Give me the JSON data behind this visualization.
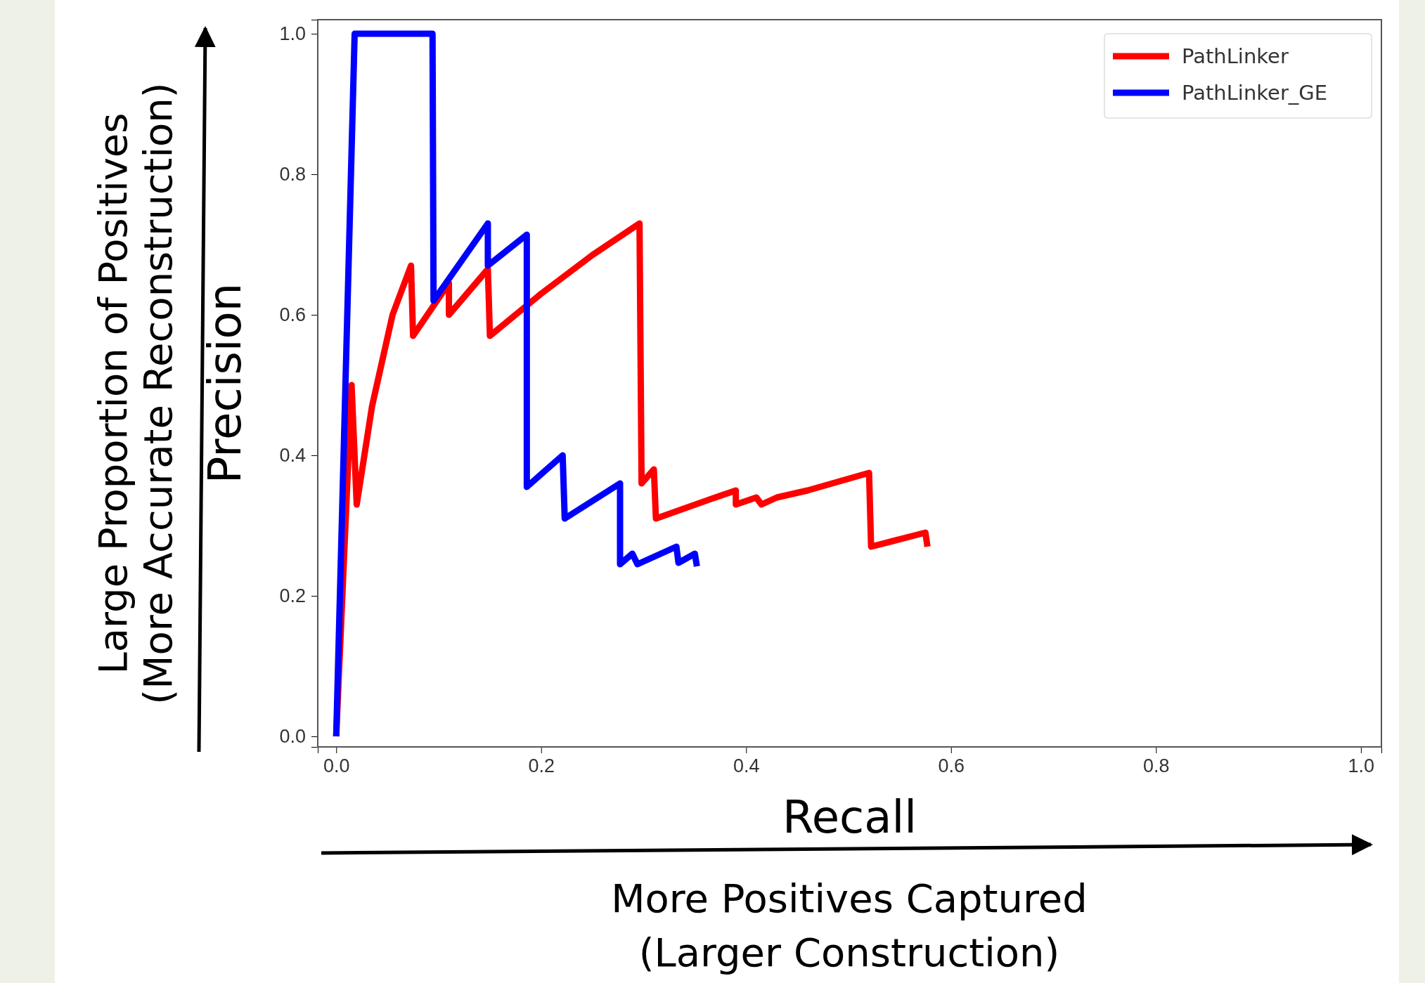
{
  "chart_data": {
    "type": "line",
    "xlabel": "Recall",
    "ylabel": "Precision",
    "xlim": [
      -0.018,
      1.02
    ],
    "ylim": [
      -0.015,
      1.02
    ],
    "xticks": [
      {
        "value": 0,
        "label": "0.0"
      },
      0.2,
      0.4,
      0.6,
      0.8,
      {
        "value": 1,
        "label": "1.0"
      }
    ],
    "yticks": [
      {
        "value": 0,
        "label": "0.0"
      },
      0.2,
      0.4,
      0.6,
      0.8,
      {
        "value": 1,
        "label": "1.0"
      }
    ],
    "legend": "top right",
    "grid": false,
    "annotations": [
      "Large Proportion of Positives\n(More Accurate Reconstruction)",
      "More Positives Captured\n(Larger Construction)"
    ],
    "series": [
      {
        "name": "PathLinker",
        "color": "#ff0000",
        "x": [
          0,
          0.015,
          0.02,
          0.035,
          0.055,
          0.073,
          0.075,
          0.11,
          0.11,
          0.148,
          0.15,
          0.2,
          0.25,
          0.296,
          0.298,
          0.31,
          0.312,
          0.37,
          0.38,
          0.39,
          0.39,
          0.41,
          0.415,
          0.43,
          0.46,
          0.52,
          0.522,
          0.575,
          0.577
        ],
        "values": [
          0,
          0.5,
          0.33,
          0.47,
          0.6,
          0.67,
          0.57,
          0.645,
          0.6,
          0.665,
          0.57,
          0.63,
          0.685,
          0.73,
          0.36,
          0.38,
          0.31,
          0.34,
          0.345,
          0.35,
          0.33,
          0.34,
          0.33,
          0.34,
          0.35,
          0.375,
          0.27,
          0.29,
          0.27
        ]
      },
      {
        "name": "PathLinker_GE",
        "color": "#0000ff",
        "x": [
          0,
          0.018,
          0.094,
          0.095,
          0.148,
          0.148,
          0.186,
          0.186,
          0.221,
          0.223,
          0.277,
          0.277,
          0.289,
          0.294,
          0.332,
          0.334,
          0.35,
          0.352
        ],
        "values": [
          0,
          1.0,
          1.0,
          0.62,
          0.73,
          0.67,
          0.714,
          0.355,
          0.4,
          0.31,
          0.36,
          0.245,
          0.26,
          0.245,
          0.27,
          0.247,
          0.26,
          0.242
        ]
      }
    ]
  }
}
